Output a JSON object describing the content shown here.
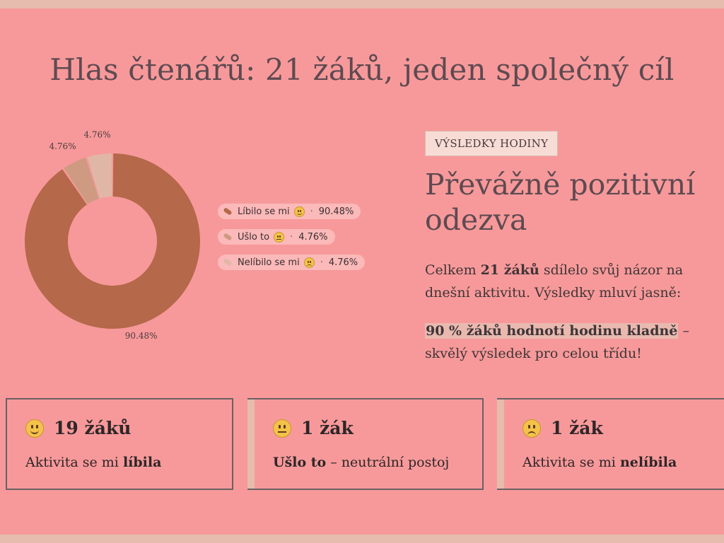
{
  "title": "Hlas čtenářů: 21 žáků, jeden společný cíl",
  "chart_data": {
    "type": "pie",
    "donut": true,
    "categories": [
      "Líbilo se mi",
      "Ušlo to",
      "Nelíbilo se mi"
    ],
    "values": [
      90.48,
      4.76,
      4.76
    ],
    "slice_labels": [
      "90.48%",
      "4.76%",
      "4.76%"
    ],
    "colors": [
      "#b5684a",
      "#cf9a82",
      "#e0b7a6"
    ],
    "legend": {
      "placement": "right",
      "items": [
        {
          "label": "Líbilo se mi",
          "emoji": "smiling-face",
          "value": "90.48%"
        },
        {
          "label": "Ušlo to",
          "emoji": "neutral-face",
          "value": "4.76%"
        },
        {
          "label": "Nelíbilo se mi",
          "emoji": "slightly-frowning-face",
          "value": "4.76%"
        }
      ]
    }
  },
  "badge": "VÝSLEDKY HODINY",
  "headline": "Převážně pozitivní odezva",
  "summary": {
    "p1_a": "Celkem ",
    "p1_b": "21 žáků",
    "p1_c": " sdílelo svůj názor na dnešní aktivitu. Výsledky mluví jasně:",
    "p2_highlight": "90 % žáků hodnotí hodinu kladně",
    "p2_rest": " – skvělý výsledek pro celou třídu!"
  },
  "cards": [
    {
      "emoji": "smiling-face",
      "title": "19 žáků",
      "desc_a": "Aktivita se mi ",
      "desc_b": "líbila",
      "desc_c": ""
    },
    {
      "emoji": "neutral-face",
      "title": "1 žák",
      "desc_a": "",
      "desc_b": "Ušlo to",
      "desc_c": " – neutrální postoj"
    },
    {
      "emoji": "slightly-frowning-face",
      "title": "1 žák",
      "desc_a": "Aktivita se mi ",
      "desc_b": "nelíbila",
      "desc_c": ""
    }
  ]
}
